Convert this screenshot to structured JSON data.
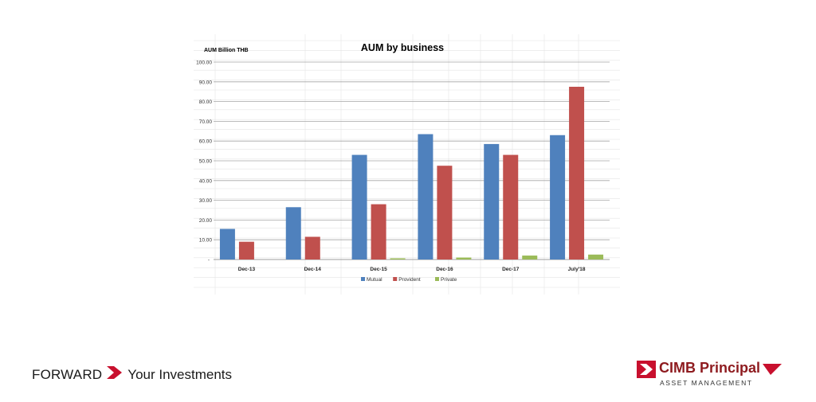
{
  "footer": {
    "tag_left": "FORWARD",
    "tag_right": "Your Investments",
    "brand_name": "CIMB Principal",
    "brand_sub": "ASSET MANAGEMENT"
  },
  "colors": {
    "mutual": "#4f81bd",
    "provident": "#c0504d",
    "private": "#9bbb59",
    "brand_red": "#c8102e"
  },
  "chart_data": {
    "type": "bar",
    "title": "AUM by business",
    "ylabel": "AUM Billion  THB",
    "xlabel": "",
    "ylim": [
      0,
      100
    ],
    "yticks": [
      "-",
      "10.00",
      "20.00",
      "30.00",
      "40.00",
      "50.00",
      "60.00",
      "70.00",
      "80.00",
      "90.00",
      "100.00"
    ],
    "categories": [
      "Dec-13",
      "Dec-14",
      "Dec-15",
      "Dec-16",
      "Dec-17",
      "July'18"
    ],
    "series": [
      {
        "name": "Mutual",
        "values": [
          15.5,
          26.5,
          53,
          63.5,
          58.5,
          63
        ]
      },
      {
        "name": "Provident",
        "values": [
          9,
          11.5,
          28,
          47.5,
          53,
          87.5
        ]
      },
      {
        "name": "Private",
        "values": [
          0,
          0,
          0.5,
          1,
          2,
          2.5
        ]
      }
    ],
    "grid": true,
    "legend_position": "bottom"
  }
}
